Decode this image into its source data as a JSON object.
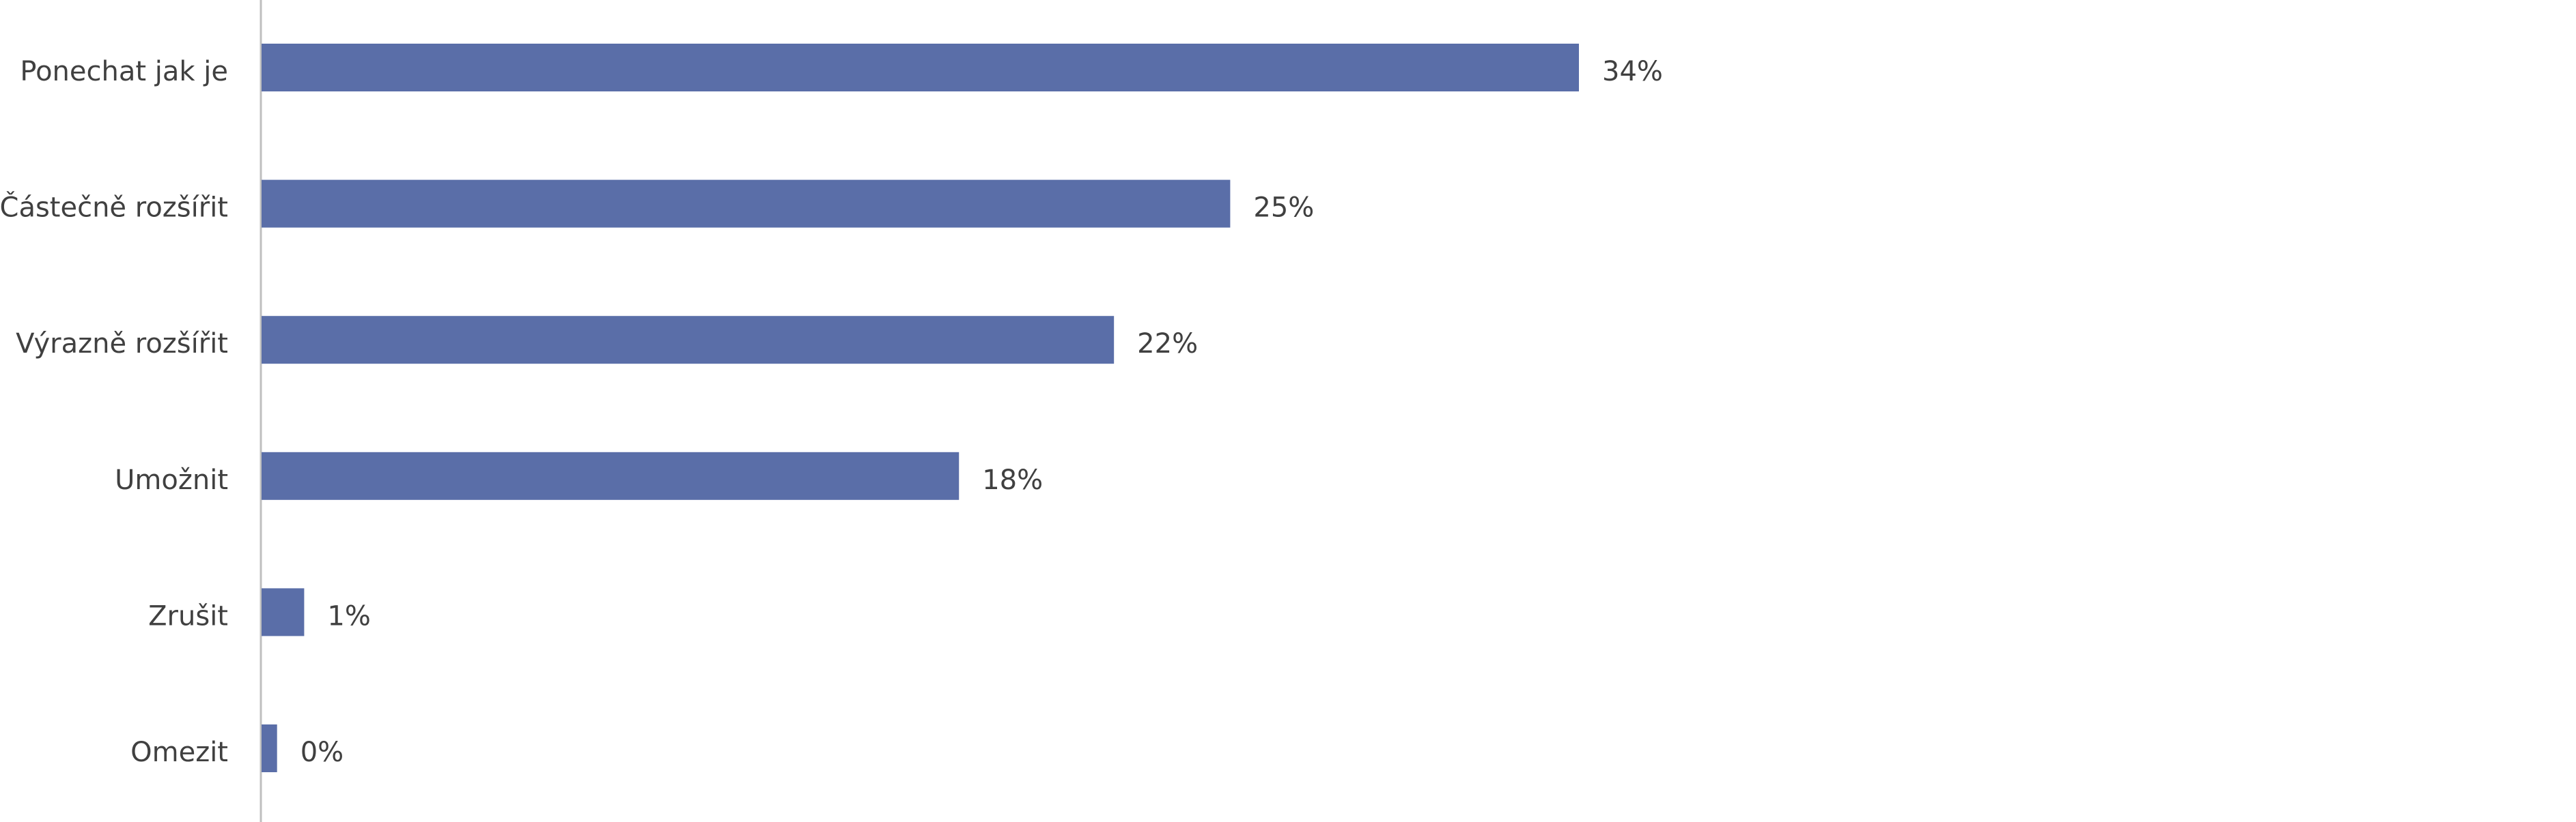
{
  "chart_data": {
    "type": "bar",
    "orientation": "horizontal",
    "categories": [
      "Ponechat jak je",
      "Částečně rozšířit",
      "Výrazně rozšířit",
      "Umožnit",
      "Zrušit",
      "Omezit"
    ],
    "values": [
      34,
      25,
      22,
      18,
      1.1,
      0.4
    ],
    "value_labels": [
      "34%",
      "25%",
      "22%",
      "18%",
      "1%",
      "0%"
    ],
    "color": "#5a6ea8"
  }
}
